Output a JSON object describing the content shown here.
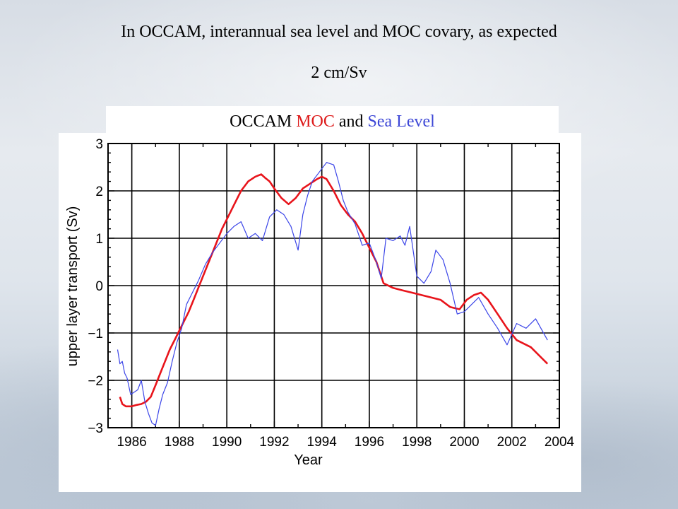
{
  "slide": {
    "title": "In OCCAM, interannual sea level and MOC covary, as expected",
    "subtitle": "2 cm/Sv"
  },
  "chart_title": {
    "part1": "OCCAM ",
    "part2": "MOC",
    "part3": " and ",
    "part4": "Sea Level"
  },
  "chart_data": {
    "type": "line",
    "title": "OCCAM MOC and Sea Level",
    "xlabel": "Year",
    "ylabel": "upper layer transport (Sv)",
    "xlim": [
      1985,
      2004
    ],
    "ylim": [
      -3,
      3
    ],
    "xticks": [
      1986,
      1988,
      1990,
      1992,
      1994,
      1996,
      1998,
      2000,
      2002,
      2004
    ],
    "yticks": [
      -3,
      -2,
      -1,
      0,
      1,
      2,
      3
    ],
    "grid": true,
    "series": [
      {
        "name": "MOC",
        "color": "#e8141b",
        "x": [
          1985.5,
          1985.6,
          1985.75,
          1986.0,
          1986.2,
          1986.4,
          1986.6,
          1986.8,
          1987.0,
          1987.2,
          1987.4,
          1987.6,
          1987.8,
          1988.0,
          1988.2,
          1988.4,
          1988.6,
          1988.8,
          1989.0,
          1989.2,
          1989.4,
          1989.6,
          1989.8,
          1990.0,
          1990.3,
          1990.6,
          1990.9,
          1991.2,
          1991.45,
          1991.6,
          1991.8,
          1992.0,
          1992.3,
          1992.6,
          1992.9,
          1993.2,
          1993.5,
          1993.8,
          1994.0,
          1994.2,
          1994.5,
          1994.8,
          1995.1,
          1995.4,
          1995.7,
          1996.0,
          1996.3,
          1996.6,
          1997.0,
          1997.4,
          1997.8,
          1998.2,
          1998.6,
          1999.0,
          1999.4,
          1999.8,
          2000.1,
          2000.4,
          2000.7,
          2001.0,
          2001.4,
          2001.8,
          2002.2,
          2002.8,
          2003.5
        ],
        "values": [
          -2.35,
          -2.5,
          -2.55,
          -2.55,
          -2.52,
          -2.5,
          -2.45,
          -2.35,
          -2.1,
          -1.85,
          -1.6,
          -1.35,
          -1.15,
          -0.95,
          -0.75,
          -0.55,
          -0.3,
          -0.05,
          0.2,
          0.45,
          0.7,
          0.95,
          1.2,
          1.4,
          1.7,
          2.0,
          2.2,
          2.3,
          2.35,
          2.28,
          2.2,
          2.05,
          1.85,
          1.72,
          1.85,
          2.05,
          2.15,
          2.25,
          2.3,
          2.25,
          2.0,
          1.7,
          1.5,
          1.35,
          1.1,
          0.8,
          0.5,
          0.05,
          -0.05,
          -0.1,
          -0.15,
          -0.2,
          -0.25,
          -0.3,
          -0.45,
          -0.5,
          -0.3,
          -0.2,
          -0.15,
          -0.3,
          -0.6,
          -0.9,
          -1.15,
          -1.3,
          -1.65
        ]
      },
      {
        "name": "Sea Level",
        "color": "#3b45e8",
        "x": [
          1985.4,
          1985.5,
          1985.6,
          1985.7,
          1985.8,
          1985.95,
          1986.1,
          1986.25,
          1986.4,
          1986.55,
          1986.7,
          1986.85,
          1987.0,
          1987.15,
          1987.3,
          1987.5,
          1987.7,
          1987.9,
          1988.1,
          1988.3,
          1988.5,
          1988.8,
          1989.1,
          1989.4,
          1989.7,
          1990.0,
          1990.3,
          1990.6,
          1990.9,
          1991.2,
          1991.5,
          1991.8,
          1992.1,
          1992.4,
          1992.7,
          1993.0,
          1993.2,
          1993.4,
          1993.6,
          1993.9,
          1994.2,
          1994.5,
          1994.7,
          1994.9,
          1995.1,
          1995.4,
          1995.7,
          1996.0,
          1996.3,
          1996.5,
          1996.7,
          1997.0,
          1997.3,
          1997.5,
          1997.7,
          1998.0,
          1998.3,
          1998.6,
          1998.8,
          1999.1,
          1999.4,
          1999.7,
          2000.0,
          2000.3,
          2000.6,
          2001.0,
          2001.4,
          2001.8,
          2002.2,
          2002.6,
          2003.0,
          2003.5
        ],
        "values": [
          -1.35,
          -1.65,
          -1.6,
          -1.85,
          -1.95,
          -2.3,
          -2.25,
          -2.2,
          -2.0,
          -2.45,
          -2.7,
          -2.9,
          -2.95,
          -2.6,
          -2.3,
          -2.05,
          -1.6,
          -1.2,
          -0.9,
          -0.4,
          -0.2,
          0.1,
          0.45,
          0.7,
          0.9,
          1.1,
          1.25,
          1.35,
          1.0,
          1.1,
          0.95,
          1.45,
          1.6,
          1.5,
          1.25,
          0.75,
          1.5,
          1.9,
          2.2,
          2.4,
          2.6,
          2.55,
          2.2,
          1.8,
          1.55,
          1.3,
          0.85,
          0.9,
          0.5,
          0.15,
          1.0,
          0.95,
          1.05,
          0.85,
          1.25,
          0.2,
          0.05,
          0.3,
          0.75,
          0.55,
          0.05,
          -0.6,
          -0.55,
          -0.4,
          -0.25,
          -0.6,
          -0.9,
          -1.25,
          -0.8,
          -0.9,
          -0.7,
          -1.15
        ]
      }
    ]
  }
}
